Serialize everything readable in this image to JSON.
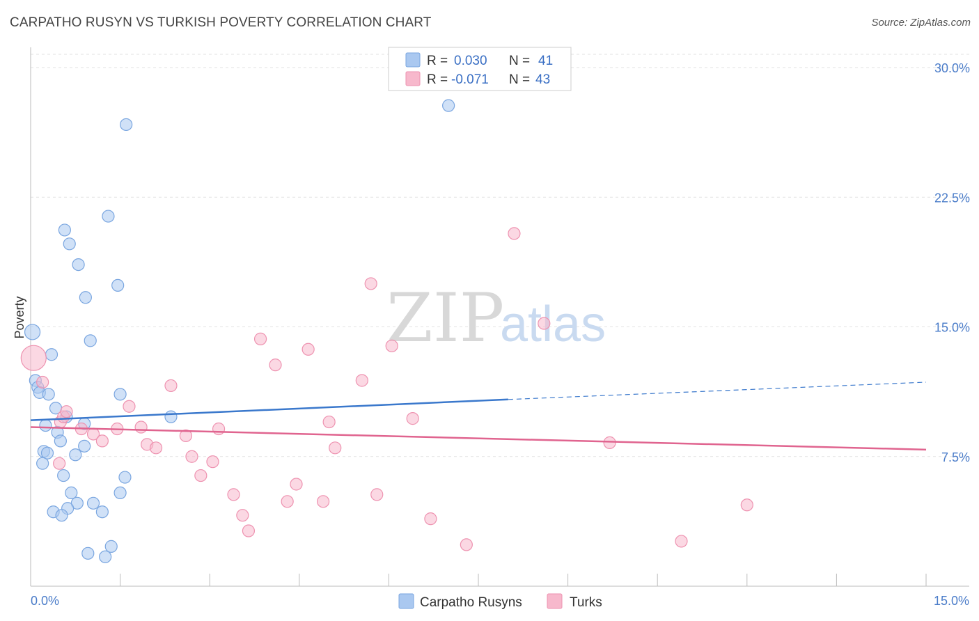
{
  "header": {
    "title": "CARPATHO RUSYN VS TURKISH POVERTY CORRELATION CHART",
    "source": "Source: ZipAtlas.com"
  },
  "watermark": {
    "zip": "ZIP",
    "atlas": "atlas"
  },
  "legend": {
    "rows": [
      {
        "r_label": "R =",
        "r_value": "0.030",
        "n_label": "N =",
        "n_value": "41",
        "color": "#aac8f0"
      },
      {
        "r_label": "R =",
        "r_value": "-0.071",
        "n_label": "N =",
        "n_value": "43",
        "color": "#f7b8cc"
      }
    ]
  },
  "bottom_legend": {
    "items": [
      {
        "label": "Carpatho Rusyns",
        "color": "#aac8f0"
      },
      {
        "label": "Turks",
        "color": "#f7b8cc"
      }
    ]
  },
  "chart_data": {
    "type": "scatter",
    "ylabel": "Poverty",
    "xlim": [
      0,
      15
    ],
    "ylim": [
      0,
      30
    ],
    "x_tick_labels": [
      "0.0%",
      "15.0%"
    ],
    "y_ticks": [
      {
        "value": 30,
        "label": "30.0%"
      },
      {
        "value": 22.5,
        "label": "22.5%"
      },
      {
        "value": 15,
        "label": "15.0%"
      },
      {
        "value": 7.5,
        "label": "7.5%"
      }
    ],
    "grid": true,
    "colors": {
      "blue": "#3a78cc",
      "pink": "#e0648f",
      "blue_fill": "#aac8f0",
      "pink_fill": "#f7b8cc"
    },
    "series": [
      {
        "name": "Carpatho Rusyns",
        "color": "#3a78cc",
        "trend": {
          "x0": 0,
          "y0": 9.6,
          "x1": 8.0,
          "y1": 10.8,
          "dash_x1": 15,
          "dash_y1": 11.8
        },
        "points": [
          [
            0.03,
            14.7
          ],
          [
            0.08,
            11.9
          ],
          [
            0.12,
            11.5
          ],
          [
            0.15,
            11.2
          ],
          [
            0.3,
            11.1
          ],
          [
            0.35,
            13.4
          ],
          [
            0.25,
            9.3
          ],
          [
            0.45,
            8.9
          ],
          [
            0.5,
            8.4
          ],
          [
            0.22,
            7.8
          ],
          [
            0.28,
            7.7
          ],
          [
            0.2,
            7.1
          ],
          [
            0.6,
            9.8
          ],
          [
            0.42,
            10.3
          ],
          [
            0.9,
            9.4
          ],
          [
            0.9,
            8.1
          ],
          [
            0.75,
            7.6
          ],
          [
            0.55,
            6.4
          ],
          [
            0.68,
            5.4
          ],
          [
            0.78,
            4.8
          ],
          [
            0.62,
            4.5
          ],
          [
            0.38,
            4.3
          ],
          [
            0.52,
            4.1
          ],
          [
            1.05,
            4.8
          ],
          [
            1.2,
            4.3
          ],
          [
            1.5,
            5.4
          ],
          [
            1.58,
            6.3
          ],
          [
            1.5,
            11.1
          ],
          [
            1.46,
            17.4
          ],
          [
            1.6,
            26.7
          ],
          [
            1.3,
            21.4
          ],
          [
            0.92,
            16.7
          ],
          [
            0.8,
            18.6
          ],
          [
            0.65,
            19.8
          ],
          [
            0.57,
            20.6
          ],
          [
            1.0,
            14.2
          ],
          [
            1.35,
            2.3
          ],
          [
            1.25,
            1.7
          ],
          [
            0.96,
            1.9
          ],
          [
            2.35,
            9.8
          ],
          [
            7.0,
            27.8
          ]
        ]
      },
      {
        "name": "Turks",
        "color": "#e0648f",
        "trend": {
          "x0": 0,
          "y0": 9.2,
          "x1": 15,
          "y1": 7.9
        },
        "points": [
          [
            0.05,
            13.2
          ],
          [
            0.2,
            11.8
          ],
          [
            0.5,
            9.5
          ],
          [
            0.55,
            9.8
          ],
          [
            0.6,
            10.1
          ],
          [
            0.85,
            9.1
          ],
          [
            1.05,
            8.8
          ],
          [
            1.2,
            8.4
          ],
          [
            1.45,
            9.1
          ],
          [
            1.65,
            10.4
          ],
          [
            1.85,
            9.2
          ],
          [
            1.95,
            8.2
          ],
          [
            2.1,
            8.0
          ],
          [
            2.35,
            11.6
          ],
          [
            2.6,
            8.7
          ],
          [
            2.7,
            7.5
          ],
          [
            2.85,
            6.4
          ],
          [
            3.05,
            7.2
          ],
          [
            3.15,
            9.1
          ],
          [
            3.4,
            5.3
          ],
          [
            3.55,
            4.1
          ],
          [
            3.65,
            3.2
          ],
          [
            3.85,
            14.3
          ],
          [
            4.1,
            12.8
          ],
          [
            4.3,
            4.9
          ],
          [
            4.45,
            5.9
          ],
          [
            4.65,
            13.7
          ],
          [
            4.9,
            4.9
          ],
          [
            5.0,
            9.5
          ],
          [
            5.1,
            8.0
          ],
          [
            5.55,
            11.9
          ],
          [
            5.7,
            17.5
          ],
          [
            5.8,
            5.3
          ],
          [
            6.05,
            13.9
          ],
          [
            6.4,
            9.7
          ],
          [
            6.7,
            3.9
          ],
          [
            7.3,
            2.4
          ],
          [
            8.1,
            20.4
          ],
          [
            8.6,
            15.2
          ],
          [
            9.7,
            8.3
          ],
          [
            10.9,
            2.6
          ],
          [
            12.0,
            4.7
          ],
          [
            0.48,
            7.1
          ]
        ]
      }
    ]
  }
}
